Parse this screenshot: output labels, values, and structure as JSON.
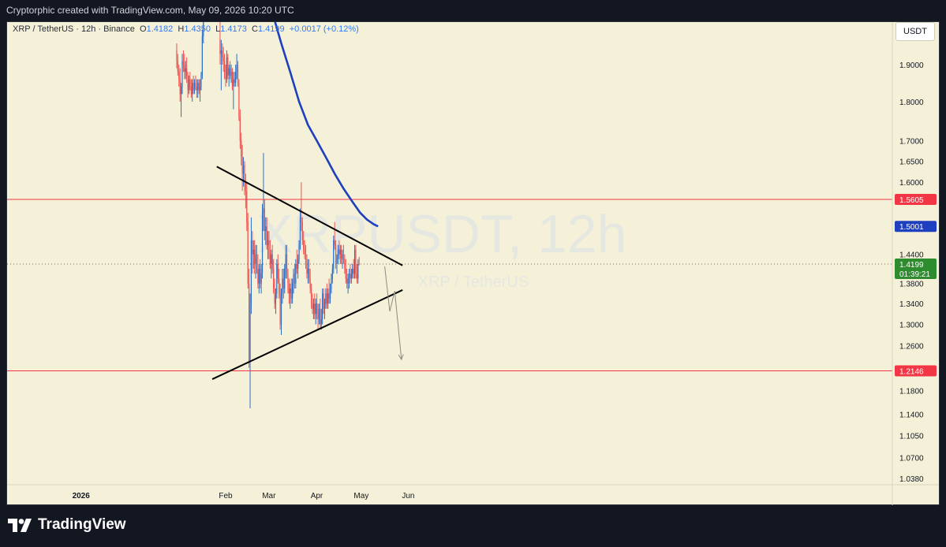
{
  "header": {
    "text": "Cryptorphic created with TradingView.com, May 09, 2026 10:20 UTC"
  },
  "symbol": {
    "name": "XRP / TetherUS · 12h · Binance",
    "o_label": "O",
    "o": "1.4182",
    "h_label": "H",
    "h": "1.4350",
    "l_label": "L",
    "l": "1.4173",
    "c_label": "C",
    "c": "1.4199",
    "change": "+0.0017 (+0.12%)"
  },
  "currency_button": "USDT",
  "watermark": {
    "line1": "XRPUSDT, 12h",
    "line2": "XRP / TetherUS"
  },
  "brand": "TradingView",
  "chart_data": {
    "type": "candlestick",
    "x_axis_labels": [
      "2026",
      "Feb",
      "Mar",
      "Apr",
      "May",
      "Jun"
    ],
    "y_axis_labels": [
      "1.9000",
      "1.8000",
      "1.7000",
      "1.6500",
      "1.6000",
      "1.4400",
      "1.3800",
      "1.3400",
      "1.3000",
      "1.2600",
      "1.1800",
      "1.1400",
      "1.1050",
      "1.0700",
      "1.0380"
    ],
    "price_scale_note": "log",
    "horizontal_levels": [
      {
        "value": 1.5605,
        "label": "1.5605",
        "color": "#f23645"
      },
      {
        "value": 1.2146,
        "label": "1.2146",
        "color": "#f23645"
      }
    ],
    "moving_average": {
      "color": "#1e3fbf",
      "last_label": "1.5001",
      "points": [
        [
          42.0,
          2.05
        ],
        [
          50.0,
          1.96
        ],
        [
          58.0,
          1.88
        ],
        [
          66.0,
          1.8
        ],
        [
          74.0,
          1.74
        ],
        [
          82.0,
          1.7
        ],
        [
          90.0,
          1.66
        ],
        [
          98.0,
          1.62
        ],
        [
          106.0,
          1.585
        ],
        [
          114.0,
          1.555
        ],
        [
          121.0,
          1.53
        ],
        [
          127.0,
          1.515
        ],
        [
          133.0,
          1.505
        ],
        [
          137.0,
          1.5001
        ]
      ]
    },
    "trendlines": [
      {
        "name": "upper",
        "from": [
          -8.0,
          1.637
        ],
        "to": [
          159.0,
          1.4169
        ],
        "color": "#000000"
      },
      {
        "name": "lower",
        "from": [
          -12.0,
          1.2
        ],
        "to": [
          159.0,
          1.367
        ],
        "color": "#000000"
      }
    ],
    "projection_path": [
      [
        143.0,
        1.415
      ],
      [
        147.5,
        1.325
      ],
      [
        152.0,
        1.365
      ],
      [
        158.0,
        1.235
      ]
    ],
    "current_price": {
      "value": 1.4199,
      "label": "1.4199",
      "countdown": "01:39:21"
    },
    "candles": [
      [
        -44,
        1.94,
        1.96,
        1.89,
        1.91
      ],
      [
        -43,
        1.91,
        1.93,
        1.87,
        1.88
      ],
      [
        -42,
        1.88,
        1.9,
        1.84,
        1.86
      ],
      [
        -41,
        1.86,
        1.89,
        1.8,
        1.82
      ],
      [
        -40,
        1.82,
        1.85,
        1.76,
        1.84
      ],
      [
        -39,
        1.84,
        1.93,
        1.82,
        1.91
      ],
      [
        -38,
        1.91,
        1.94,
        1.88,
        1.9
      ],
      [
        -37,
        1.9,
        1.93,
        1.86,
        1.88
      ],
      [
        -36,
        1.88,
        1.91,
        1.86,
        1.89
      ],
      [
        -35,
        1.89,
        1.92,
        1.85,
        1.87
      ],
      [
        -34,
        1.87,
        1.88,
        1.81,
        1.83
      ],
      [
        -33,
        1.83,
        1.87,
        1.82,
        1.86
      ],
      [
        -32,
        1.86,
        1.88,
        1.83,
        1.84
      ],
      [
        -31,
        1.84,
        1.86,
        1.81,
        1.82
      ],
      [
        -30,
        1.82,
        1.86,
        1.8,
        1.85
      ],
      [
        -29,
        1.85,
        1.87,
        1.82,
        1.83
      ],
      [
        -28,
        1.83,
        1.86,
        1.82,
        1.85
      ],
      [
        -27,
        1.85,
        1.87,
        1.83,
        1.84
      ],
      [
        -26,
        1.84,
        1.86,
        1.81,
        1.83
      ],
      [
        -25,
        1.83,
        1.86,
        1.81,
        1.85
      ],
      [
        -24,
        1.85,
        1.86,
        1.82,
        1.83
      ],
      [
        -23,
        1.83,
        1.86,
        1.8,
        1.84
      ],
      [
        -22,
        1.84,
        1.88,
        1.83,
        1.87
      ],
      [
        -21,
        1.87,
        2.0,
        1.86,
        1.98
      ],
      [
        -20,
        1.98,
        2.06,
        1.96,
        2.05
      ],
      [
        -19,
        2.05,
        2.1,
        2.03,
        2.08
      ],
      [
        -18,
        2.08,
        2.12,
        2.05,
        2.1
      ],
      [
        -5,
        1.97,
        2.05,
        1.9,
        1.93
      ],
      [
        -4,
        1.93,
        1.97,
        1.83,
        1.94
      ],
      [
        -3,
        1.94,
        1.96,
        1.9,
        1.92
      ],
      [
        -2,
        1.92,
        1.95,
        1.88,
        1.91
      ],
      [
        -1,
        1.91,
        1.93,
        1.86,
        1.88
      ],
      [
        0,
        1.88,
        1.9,
        1.84,
        1.86
      ],
      [
        1,
        1.86,
        1.94,
        1.85,
        1.92
      ],
      [
        2,
        1.92,
        1.93,
        1.86,
        1.87
      ],
      [
        3,
        1.87,
        1.9,
        1.84,
        1.89
      ],
      [
        4,
        1.89,
        1.91,
        1.86,
        1.87
      ],
      [
        5,
        1.87,
        1.9,
        1.85,
        1.88
      ],
      [
        6,
        1.88,
        1.89,
        1.83,
        1.84
      ],
      [
        7,
        1.84,
        1.88,
        1.78,
        1.86
      ],
      [
        8,
        1.86,
        1.88,
        1.84,
        1.85
      ],
      [
        9,
        1.85,
        1.9,
        1.84,
        1.88
      ],
      [
        10,
        1.88,
        1.93,
        1.86,
        1.9
      ],
      [
        11,
        1.9,
        1.91,
        1.84,
        1.85
      ],
      [
        12,
        1.85,
        1.86,
        1.75,
        1.76
      ],
      [
        13,
        1.76,
        1.78,
        1.68,
        1.7
      ],
      [
        14,
        1.7,
        1.72,
        1.64,
        1.66
      ],
      [
        15,
        1.66,
        1.69,
        1.58,
        1.62
      ],
      [
        16,
        1.62,
        1.66,
        1.59,
        1.64
      ],
      [
        17,
        1.64,
        1.65,
        1.57,
        1.6
      ],
      [
        18,
        1.6,
        1.62,
        1.54,
        1.58
      ],
      [
        19,
        1.58,
        1.6,
        1.49,
        1.51
      ],
      [
        20,
        1.51,
        1.53,
        1.37,
        1.38
      ],
      [
        21,
        1.38,
        1.41,
        1.22,
        1.23
      ],
      [
        22,
        1.23,
        1.36,
        1.15,
        1.34
      ],
      [
        23,
        1.34,
        1.52,
        1.32,
        1.47
      ],
      [
        24,
        1.47,
        1.49,
        1.4,
        1.44
      ],
      [
        25,
        1.44,
        1.47,
        1.41,
        1.45
      ],
      [
        26,
        1.45,
        1.47,
        1.4,
        1.42
      ],
      [
        27,
        1.42,
        1.46,
        1.39,
        1.44
      ],
      [
        28,
        1.44,
        1.46,
        1.4,
        1.41
      ],
      [
        29,
        1.41,
        1.44,
        1.37,
        1.38
      ],
      [
        30,
        1.38,
        1.42,
        1.36,
        1.41
      ],
      [
        31,
        1.41,
        1.43,
        1.37,
        1.38
      ],
      [
        32,
        1.38,
        1.42,
        1.36,
        1.4
      ],
      [
        33,
        1.4,
        1.55,
        1.39,
        1.53
      ],
      [
        34,
        1.53,
        1.67,
        1.49,
        1.54
      ],
      [
        35,
        1.54,
        1.56,
        1.47,
        1.49
      ],
      [
        36,
        1.49,
        1.52,
        1.46,
        1.5
      ],
      [
        37,
        1.5,
        1.52,
        1.45,
        1.46
      ],
      [
        38,
        1.46,
        1.49,
        1.43,
        1.47
      ],
      [
        39,
        1.47,
        1.49,
        1.43,
        1.44
      ],
      [
        40,
        1.44,
        1.47,
        1.41,
        1.42
      ],
      [
        41,
        1.42,
        1.45,
        1.39,
        1.44
      ],
      [
        42,
        1.44,
        1.46,
        1.4,
        1.41
      ],
      [
        43,
        1.41,
        1.43,
        1.36,
        1.37
      ],
      [
        44,
        1.37,
        1.39,
        1.33,
        1.34
      ],
      [
        45,
        1.34,
        1.37,
        1.32,
        1.36
      ],
      [
        46,
        1.36,
        1.43,
        1.35,
        1.42
      ],
      [
        47,
        1.42,
        1.44,
        1.38,
        1.39
      ],
      [
        48,
        1.39,
        1.41,
        1.35,
        1.36
      ],
      [
        49,
        1.36,
        1.38,
        1.29,
        1.3
      ],
      [
        50,
        1.3,
        1.37,
        1.28,
        1.36
      ],
      [
        51,
        1.36,
        1.41,
        1.34,
        1.39
      ],
      [
        52,
        1.39,
        1.41,
        1.35,
        1.37
      ],
      [
        53,
        1.37,
        1.42,
        1.36,
        1.41
      ],
      [
        54,
        1.41,
        1.46,
        1.39,
        1.44
      ],
      [
        55,
        1.44,
        1.46,
        1.39,
        1.4
      ],
      [
        56,
        1.4,
        1.41,
        1.36,
        1.37
      ],
      [
        57,
        1.37,
        1.39,
        1.34,
        1.36
      ],
      [
        58,
        1.36,
        1.38,
        1.33,
        1.37
      ],
      [
        59,
        1.37,
        1.39,
        1.34,
        1.35
      ],
      [
        60,
        1.35,
        1.39,
        1.34,
        1.38
      ],
      [
        61,
        1.38,
        1.41,
        1.36,
        1.4
      ],
      [
        62,
        1.4,
        1.42,
        1.37,
        1.38
      ],
      [
        63,
        1.38,
        1.43,
        1.37,
        1.42
      ],
      [
        64,
        1.42,
        1.45,
        1.4,
        1.41
      ],
      [
        65,
        1.41,
        1.44,
        1.39,
        1.43
      ],
      [
        66,
        1.43,
        1.47,
        1.42,
        1.46
      ],
      [
        67,
        1.46,
        1.54,
        1.45,
        1.52
      ],
      [
        68,
        1.52,
        1.6,
        1.49,
        1.51
      ],
      [
        69,
        1.51,
        1.52,
        1.46,
        1.47
      ],
      [
        70,
        1.47,
        1.49,
        1.44,
        1.45
      ],
      [
        71,
        1.45,
        1.47,
        1.43,
        1.44
      ],
      [
        72,
        1.44,
        1.46,
        1.41,
        1.42
      ],
      [
        73,
        1.42,
        1.44,
        1.39,
        1.4
      ],
      [
        74,
        1.4,
        1.43,
        1.38,
        1.41
      ],
      [
        75,
        1.41,
        1.43,
        1.38,
        1.39
      ],
      [
        76,
        1.39,
        1.41,
        1.36,
        1.37
      ],
      [
        77,
        1.37,
        1.38,
        1.33,
        1.34
      ],
      [
        78,
        1.34,
        1.36,
        1.32,
        1.33
      ],
      [
        79,
        1.33,
        1.35,
        1.31,
        1.34
      ],
      [
        80,
        1.34,
        1.36,
        1.31,
        1.32
      ],
      [
        81,
        1.32,
        1.35,
        1.3,
        1.34
      ],
      [
        82,
        1.34,
        1.36,
        1.31,
        1.32
      ],
      [
        83,
        1.32,
        1.34,
        1.29,
        1.31
      ],
      [
        84,
        1.31,
        1.34,
        1.3,
        1.33
      ],
      [
        85,
        1.33,
        1.35,
        1.29,
        1.3
      ],
      [
        86,
        1.3,
        1.33,
        1.29,
        1.31
      ],
      [
        87,
        1.31,
        1.37,
        1.3,
        1.36
      ],
      [
        88,
        1.36,
        1.37,
        1.32,
        1.33
      ],
      [
        89,
        1.33,
        1.35,
        1.31,
        1.34
      ],
      [
        90,
        1.34,
        1.37,
        1.33,
        1.36
      ],
      [
        91,
        1.36,
        1.38,
        1.33,
        1.34
      ],
      [
        92,
        1.34,
        1.37,
        1.33,
        1.36
      ],
      [
        93,
        1.36,
        1.39,
        1.34,
        1.35
      ],
      [
        94,
        1.35,
        1.38,
        1.34,
        1.37
      ],
      [
        95,
        1.37,
        1.4,
        1.36,
        1.39
      ],
      [
        96,
        1.39,
        1.42,
        1.38,
        1.41
      ],
      [
        97,
        1.41,
        1.48,
        1.4,
        1.47
      ],
      [
        98,
        1.47,
        1.51,
        1.45,
        1.46
      ],
      [
        99,
        1.46,
        1.47,
        1.41,
        1.42
      ],
      [
        100,
        1.42,
        1.44,
        1.4,
        1.43
      ],
      [
        101,
        1.43,
        1.46,
        1.42,
        1.45
      ],
      [
        102,
        1.45,
        1.47,
        1.43,
        1.44
      ],
      [
        103,
        1.44,
        1.46,
        1.42,
        1.45
      ],
      [
        104,
        1.45,
        1.46,
        1.42,
        1.43
      ],
      [
        105,
        1.43,
        1.45,
        1.41,
        1.44
      ],
      [
        106,
        1.44,
        1.46,
        1.42,
        1.43
      ],
      [
        107,
        1.43,
        1.44,
        1.4,
        1.41
      ],
      [
        108,
        1.41,
        1.43,
        1.38,
        1.39
      ],
      [
        109,
        1.39,
        1.41,
        1.37,
        1.38
      ],
      [
        110,
        1.38,
        1.4,
        1.36,
        1.39
      ],
      [
        111,
        1.39,
        1.41,
        1.37,
        1.4
      ],
      [
        112,
        1.4,
        1.42,
        1.38,
        1.39
      ],
      [
        113,
        1.39,
        1.41,
        1.38,
        1.4
      ],
      [
        114,
        1.4,
        1.42,
        1.39,
        1.41
      ],
      [
        115,
        1.41,
        1.43,
        1.39,
        1.4
      ],
      [
        116,
        1.4,
        1.46,
        1.39,
        1.45
      ],
      [
        117,
        1.45,
        1.46,
        1.39,
        1.4
      ],
      [
        118,
        1.4,
        1.42,
        1.38,
        1.39
      ],
      [
        119,
        1.39,
        1.43,
        1.38,
        1.42
      ],
      [
        120,
        1.42,
        1.435,
        1.417,
        1.4199
      ]
    ]
  }
}
